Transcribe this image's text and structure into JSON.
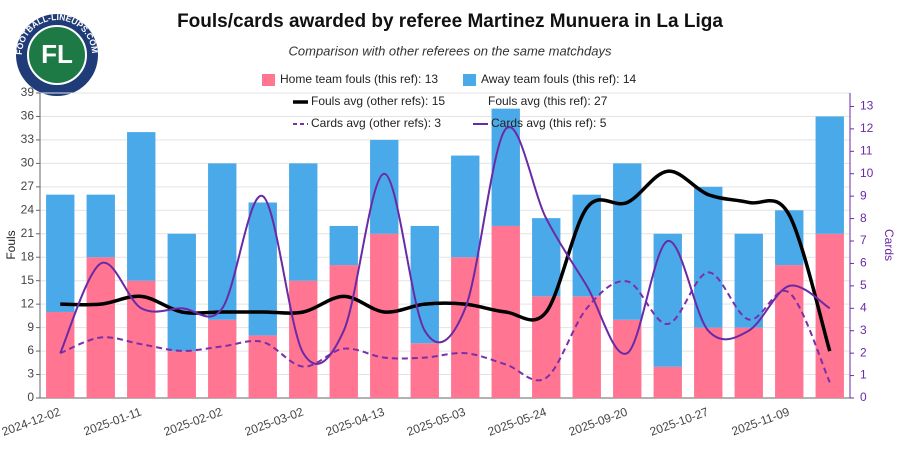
{
  "logo_text": "FOOTBALL-LINEUPS.COM",
  "chart_data": {
    "type": "bar",
    "title": "Fouls/cards awarded by referee Martinez Munuera in La Liga",
    "subtitle": "Comparison with other referees on the same matchdays",
    "ylabel": "Fouls",
    "y2label": "Cards",
    "categories": [
      "2024-12-02",
      null,
      "2025-01-11",
      null,
      "2025-02-02",
      null,
      "2025-03-02",
      null,
      "2025-04-13",
      null,
      "2025-05-03",
      null,
      "2025-05-24",
      null,
      "2025-09-20",
      null,
      "2025-10-27",
      null,
      "2025-11-09",
      null
    ],
    "ylim": [
      0,
      39
    ],
    "yticks": [
      0,
      3,
      6,
      9,
      12,
      15,
      18,
      21,
      24,
      27,
      30,
      33,
      36,
      39
    ],
    "y2lim": [
      0,
      13.6
    ],
    "y2ticks": [
      0,
      1,
      2,
      3,
      4,
      5,
      6,
      7,
      8,
      9,
      10,
      11,
      12,
      13
    ],
    "grid": true,
    "series": [
      {
        "name": "Home team fouls (this ref): 13",
        "type": "bar",
        "color": "#ff7592",
        "values": [
          11,
          18,
          15,
          6,
          10,
          8,
          15,
          17,
          21,
          7,
          18,
          22,
          13,
          13,
          10,
          4,
          9,
          9,
          17,
          21
        ]
      },
      {
        "name": "Away team fouls (this ref): 14",
        "type": "bar",
        "color": "#4aa9e9",
        "values": [
          15,
          8,
          19,
          15,
          20,
          17,
          15,
          5,
          12,
          15,
          13,
          15,
          10,
          13,
          20,
          17,
          18,
          12,
          7,
          15
        ]
      },
      {
        "name": "Fouls avg (other refs): 15",
        "type": "line",
        "color": "#000000",
        "values": [
          12,
          12,
          13,
          11,
          11,
          11,
          11,
          13,
          11,
          12,
          12,
          11,
          11,
          24.3,
          25,
          29,
          26,
          25,
          23.4,
          6
        ]
      },
      {
        "name": "Cards avg (other refs): 3",
        "type": "line",
        "dashed": true,
        "axis": "y2",
        "color": "#7b2fa8",
        "values": [
          2.0,
          2.7,
          2.4,
          2.1,
          2.3,
          2.5,
          1.4,
          2.2,
          1.8,
          1.8,
          2.0,
          1.5,
          0.9,
          4.0,
          5.2,
          3.3,
          5.6,
          3.5,
          4.7,
          0.7
        ]
      },
      {
        "name": "Cards avg (this ref): 5",
        "type": "line",
        "axis": "y2",
        "color": "#6a2aa6",
        "values": [
          2,
          6,
          4,
          4,
          4,
          9,
          2,
          3,
          10,
          3,
          4,
          12,
          8,
          5,
          2,
          7,
          3,
          3,
          5,
          4
        ]
      }
    ],
    "legend_notes": [
      "Fouls avg (this ref): 27"
    ]
  }
}
